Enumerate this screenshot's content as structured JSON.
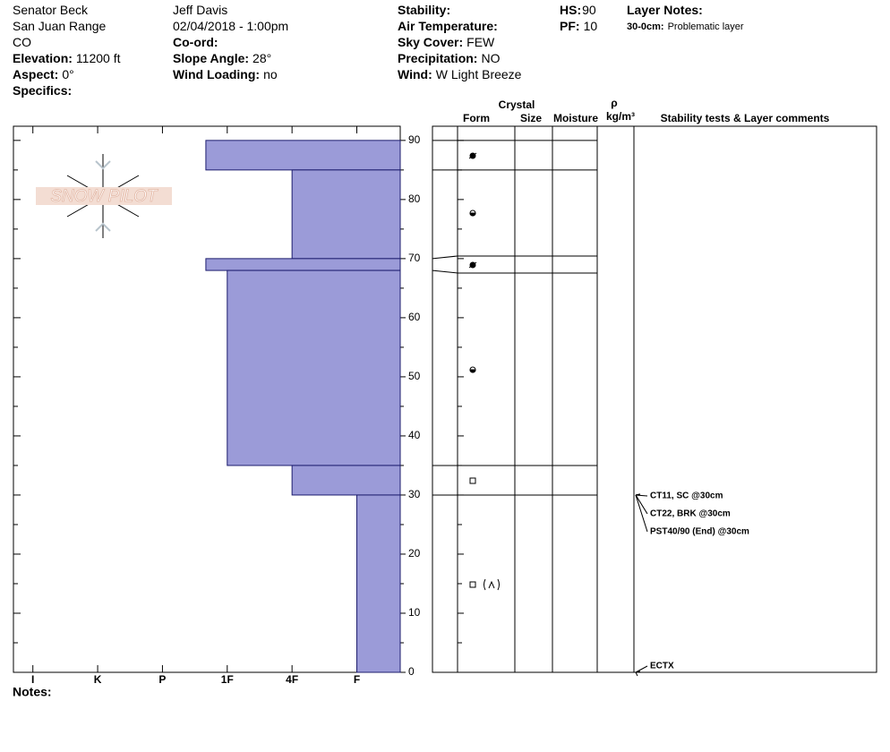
{
  "header": [
    [
      {
        "value": "Senator Beck"
      },
      {
        "value": "San Juan Range"
      },
      {
        "value": "CO"
      },
      {
        "label": "Elevation:",
        "value": "11200 ft"
      },
      {
        "label": "Aspect:",
        "value": "0°"
      },
      {
        "label": "Specifics:"
      }
    ],
    [
      {
        "value": "Jeff Davis"
      },
      {
        "value": "02/04/2018 - 1:00pm"
      },
      {
        "label": "Co-ord:"
      },
      {
        "label": "Slope Angle:",
        "value": "28°"
      },
      {
        "label": "Wind Loading:",
        "value": "no"
      }
    ],
    [
      {
        "label": "Stability:"
      },
      {
        "label": "Air Temperature:"
      },
      {
        "label": "Sky Cover:",
        "value": "FEW"
      },
      {
        "label": "Precipitation:",
        "value": "NO"
      },
      {
        "label": "Wind:",
        "value": "W Light Breeze"
      }
    ],
    [
      {
        "label": "HS:",
        "value": "90"
      },
      {
        "label": "PF:",
        "value": "10"
      }
    ],
    [
      {
        "label": "Layer Notes:"
      },
      {
        "label": "30-0cm:",
        "value": "Problematic layer"
      }
    ]
  ],
  "logo": "SNOW PILOT",
  "notes_label": "Notes:",
  "table_headers": {
    "crystal": "Crystal",
    "form": "Form",
    "size": "Size",
    "moisture": "Moisture",
    "rho": "ρ",
    "density_unit": "kg/m³",
    "comments": "Stability tests & Layer comments"
  },
  "chart_data": {
    "type": "snow-profile",
    "color": "#9b9bd8",
    "xlim": [
      6.3,
      0.33
    ],
    "xticks": [
      {
        "value": 6,
        "label": "I"
      },
      {
        "value": 5,
        "label": "K"
      },
      {
        "value": 4,
        "label": "P"
      },
      {
        "value": 3,
        "label": "1F"
      },
      {
        "value": 2,
        "label": "4F"
      },
      {
        "value": 1,
        "label": "F"
      }
    ],
    "ylim": [
      0,
      92.4
    ],
    "yticks": [
      0,
      10,
      20,
      30,
      40,
      50,
      60,
      70,
      80,
      90
    ],
    "yticks_minor": [
      5,
      15,
      25,
      35,
      45,
      55,
      65,
      75,
      85
    ],
    "layers": [
      {
        "top": 90,
        "bottom": 85,
        "hardness": 3.33
      },
      {
        "top": 85,
        "bottom": 70,
        "hardness": 2
      },
      {
        "top": 70,
        "bottom": 68,
        "hardness": 3.33
      },
      {
        "top": 68,
        "bottom": 35,
        "hardness": 3
      },
      {
        "top": 35,
        "bottom": 30,
        "hardness": 2
      },
      {
        "top": 30,
        "bottom": 0,
        "hardness": 1
      }
    ],
    "tests": [
      {
        "text": "CT11, SC @30cm",
        "height": 30
      },
      {
        "text": "CT22, BRK @30cm",
        "height": 30
      },
      {
        "text": "PST40/90 (End) @30cm",
        "height": 30
      },
      {
        "text": "ECTX",
        "height": 0
      }
    ]
  }
}
